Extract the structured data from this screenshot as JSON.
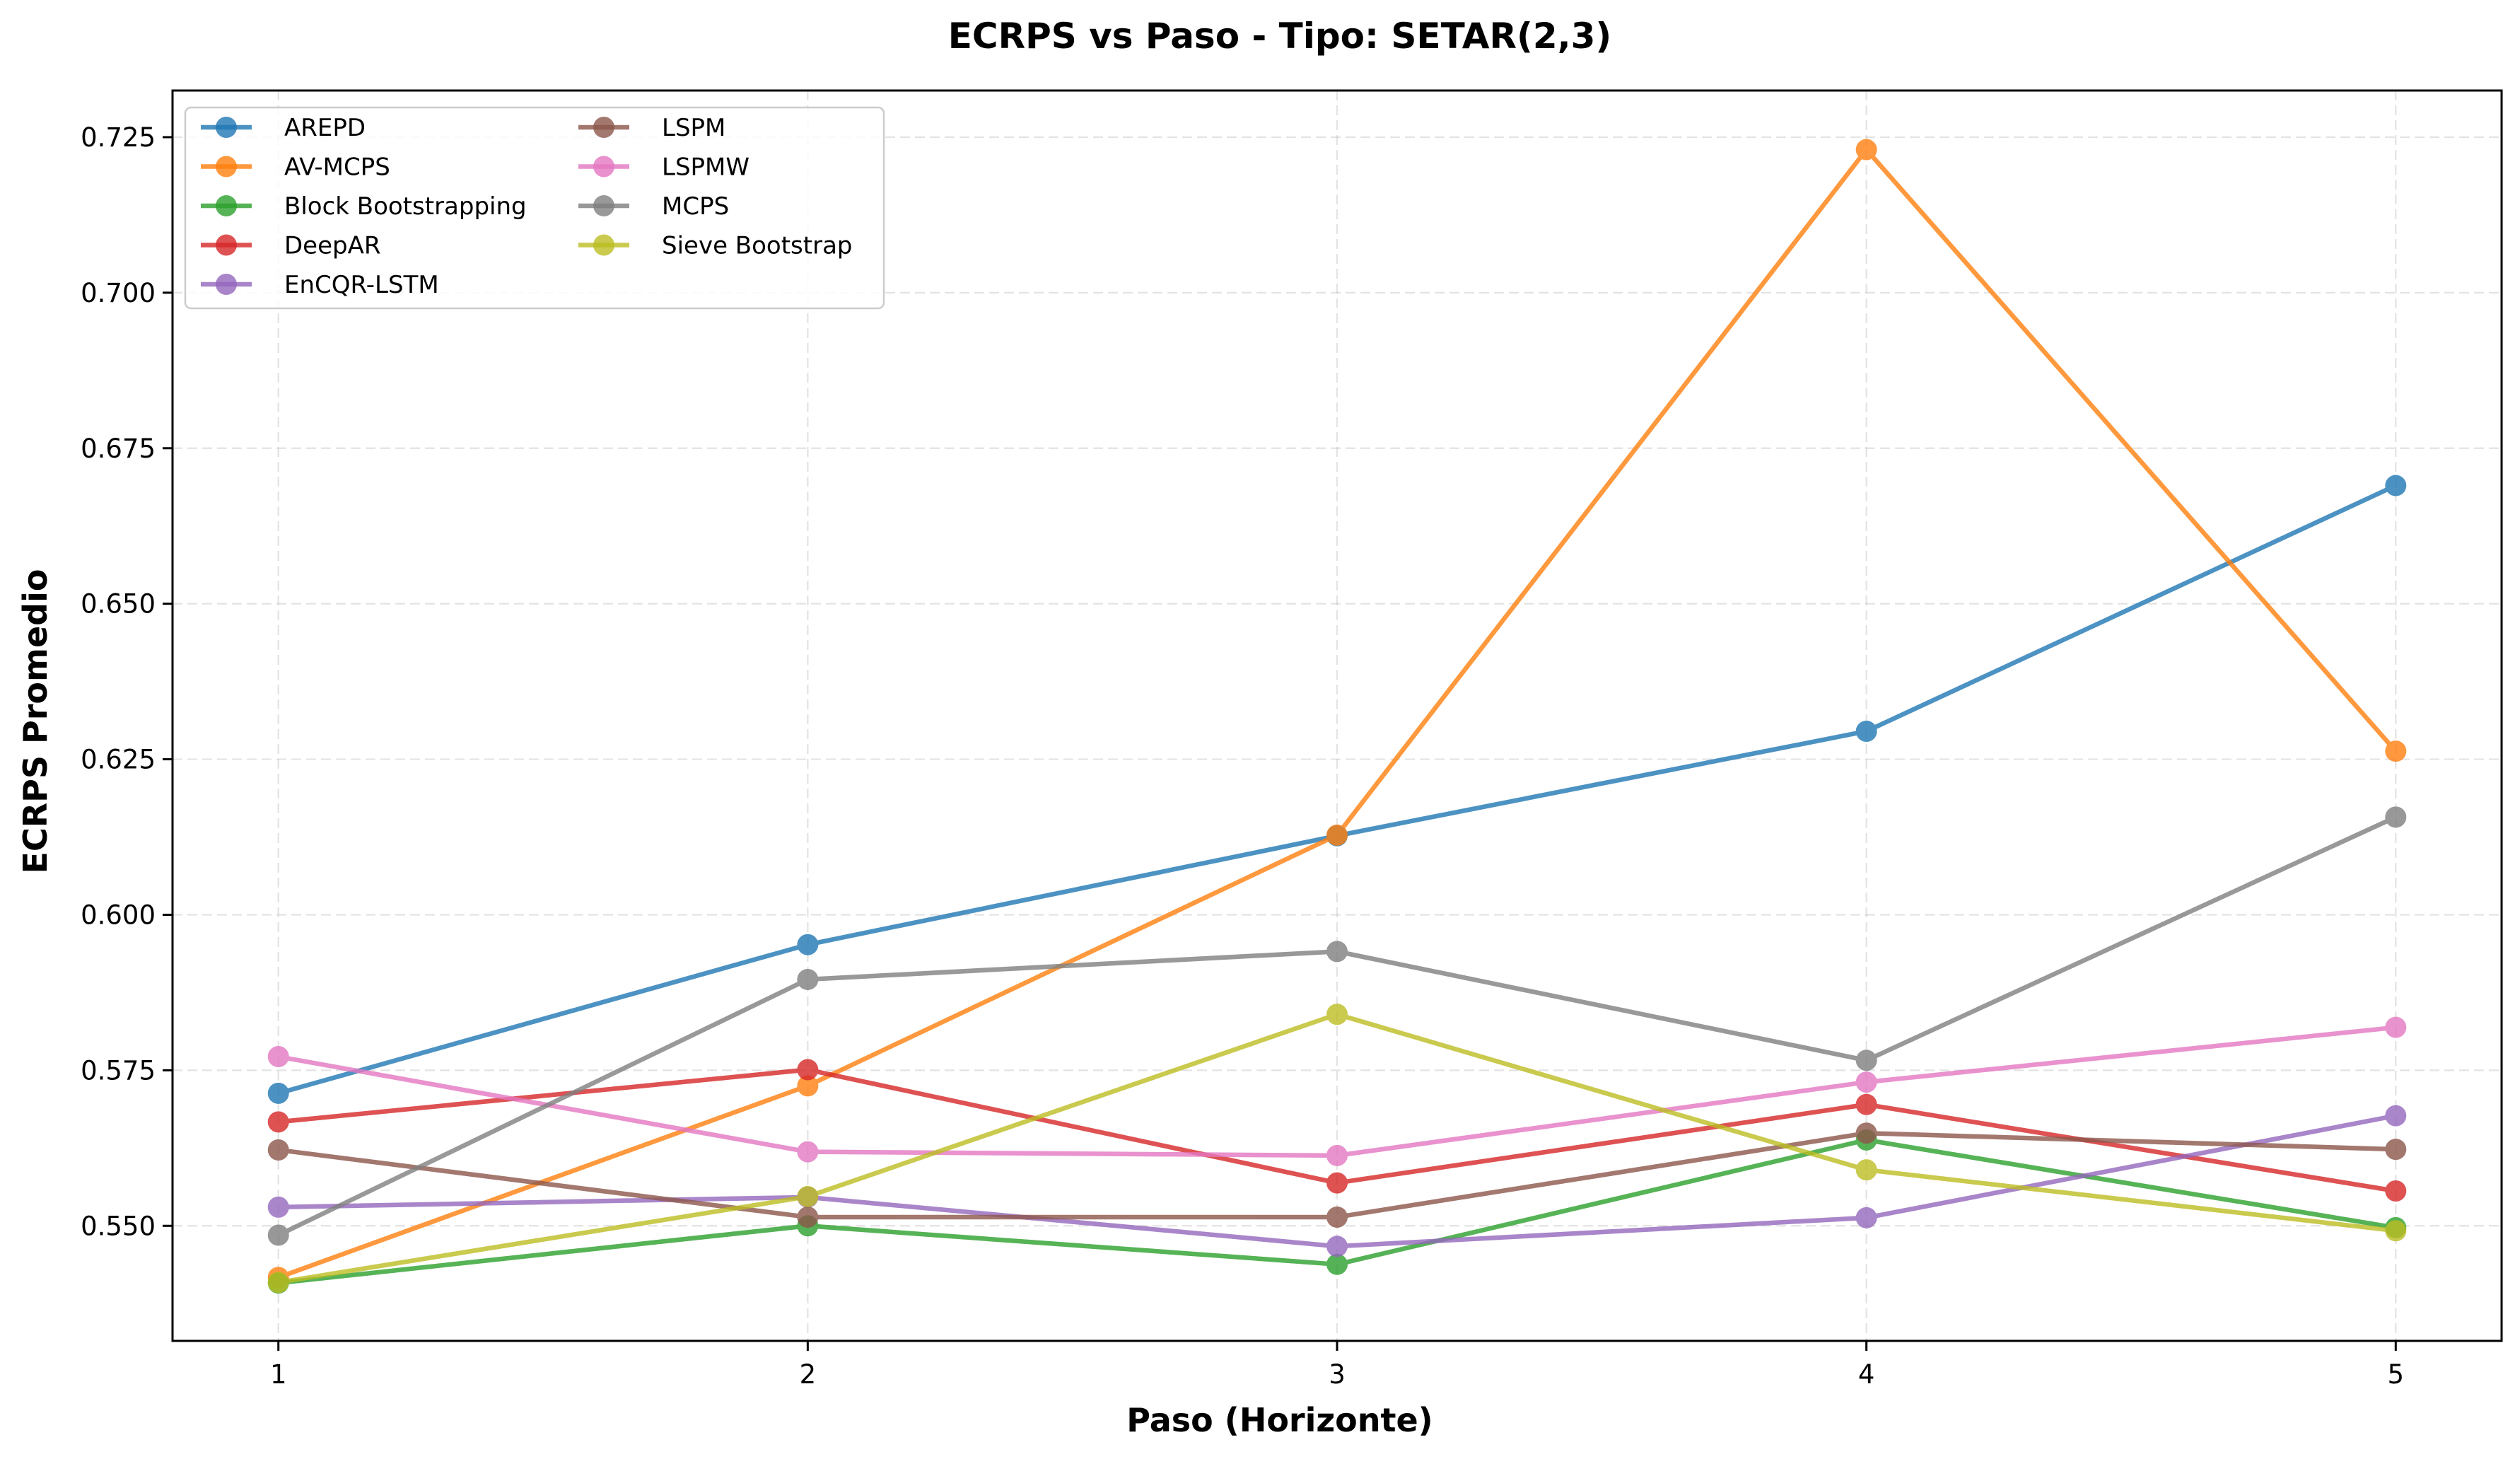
{
  "chart_data": {
    "type": "line",
    "title": "ECRPS vs Paso - Tipo: SETAR(2,3)",
    "xlabel": "Paso (Horizonte)",
    "ylabel": "ECRPS Promedio",
    "x": [
      1,
      2,
      3,
      4,
      5
    ],
    "x_tick_labels": [
      "1",
      "2",
      "3",
      "4",
      "5"
    ],
    "y_ticks": [
      0.55,
      0.575,
      0.6,
      0.625,
      0.65,
      0.675,
      0.7,
      0.725
    ],
    "y_tick_labels": [
      "0.550",
      "0.575",
      "0.600",
      "0.625",
      "0.650",
      "0.675",
      "0.700",
      "0.725"
    ],
    "xlim": [
      0.8,
      5.2
    ],
    "ylim": [
      0.5315,
      0.7325
    ],
    "grid": true,
    "legend_position": "top-left",
    "series": [
      {
        "name": "AREPD",
        "color": "#1f77b4",
        "values": [
          0.5713,
          0.5952,
          0.6127,
          0.6295,
          0.669
        ]
      },
      {
        "name": "AV-MCPS",
        "color": "#ff7f0e",
        "values": [
          0.5417,
          0.5725,
          0.6128,
          0.723,
          0.6263
        ]
      },
      {
        "name": "Block Bootstrapping",
        "color": "#2ca02c",
        "values": [
          0.5408,
          0.55,
          0.5438,
          0.5638,
          0.5497
        ]
      },
      {
        "name": "DeepAR",
        "color": "#d62728",
        "values": [
          0.5667,
          0.5751,
          0.5569,
          0.5695,
          0.5556
        ]
      },
      {
        "name": "EnCQR-LSTM",
        "color": "#9467bd",
        "values": [
          0.553,
          0.5546,
          0.5467,
          0.5513,
          0.5677
        ]
      },
      {
        "name": "LSPM",
        "color": "#8c564b",
        "values": [
          0.5622,
          0.5514,
          0.5514,
          0.5649,
          0.5623
        ]
      },
      {
        "name": "LSPMW",
        "color": "#e377c2",
        "values": [
          0.5772,
          0.5619,
          0.5613,
          0.5731,
          0.5819
        ]
      },
      {
        "name": "MCPS",
        "color": "#7f7f7f",
        "values": [
          0.5485,
          0.5896,
          0.5941,
          0.5766,
          0.6157
        ]
      },
      {
        "name": "Sieve Bootstrap",
        "color": "#bcbd22",
        "values": [
          0.5409,
          0.5547,
          0.584,
          0.559,
          0.5492
        ]
      }
    ]
  }
}
